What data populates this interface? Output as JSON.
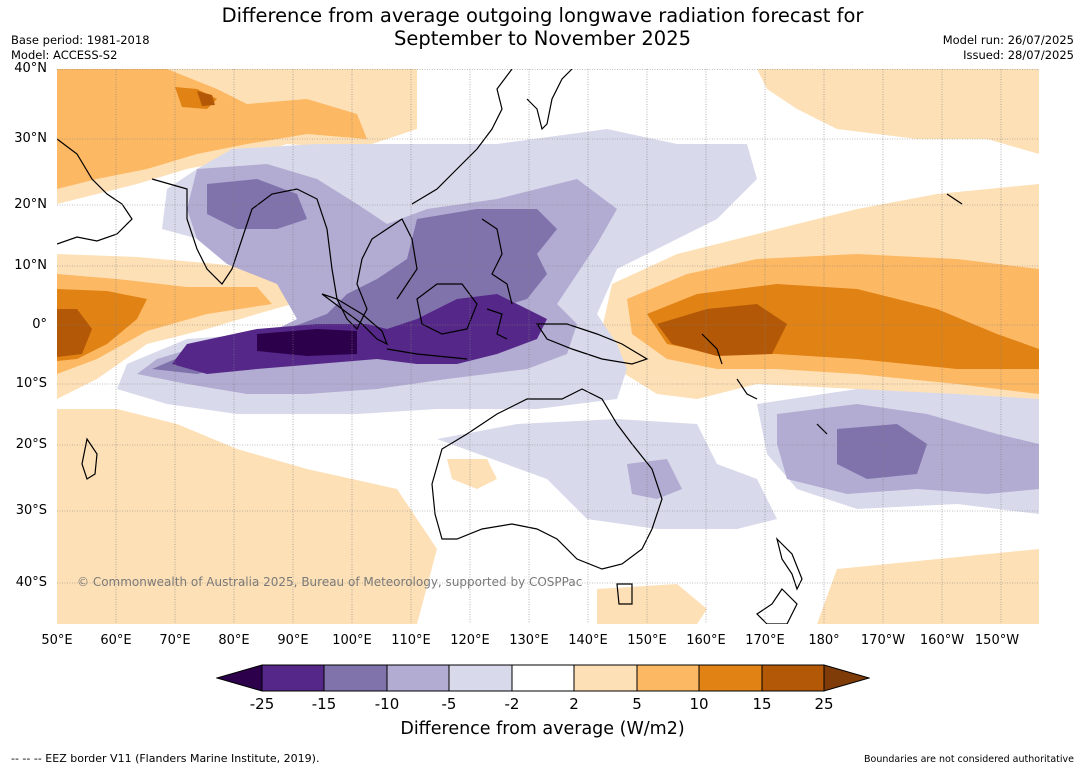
{
  "header": {
    "title_line1": "Difference from average outgoing longwave radiation forecast for",
    "title_line2": "September to November 2025",
    "base_period": "Base period: 1981-2018",
    "model": "Model: ACCESS-S2",
    "model_run": "Model run: 26/07/2025",
    "issued": "Issued: 28/07/2025"
  },
  "map": {
    "lat_labels": [
      "40°N",
      "30°N",
      "20°N",
      "10°N",
      "0°",
      "10°S",
      "20°S",
      "30°S",
      "40°S"
    ],
    "lon_labels": [
      "50°E",
      "60°E",
      "70°E",
      "80°E",
      "90°E",
      "100°E",
      "110°E",
      "120°E",
      "130°E",
      "140°E",
      "150°E",
      "160°E",
      "170°E",
      "180°",
      "170°W",
      "160°W",
      "150°W"
    ],
    "copyright": "© Commonwealth of Australia 2025, Bureau of Meteorology, supported by COSPPac",
    "land_icon": "coastline",
    "colors": {
      "p4": "#2d004b",
      "p3": "#542788",
      "p2": "#8073ac",
      "p1": "#b2abd2",
      "p0": "#d8daeb",
      "neutral": "#ffffff",
      "o0": "#fee0b6",
      "o1": "#fdb863",
      "o2": "#e08214",
      "o3": "#b35806",
      "o4": "#7f3b08"
    }
  },
  "colorbar": {
    "ticks": [
      "-25",
      "-15",
      "-10",
      "-5",
      "-2",
      "2",
      "5",
      "10",
      "15",
      "25"
    ],
    "label": "Difference from average (W/m2)",
    "colors": [
      "#2d004b",
      "#542788",
      "#8073ac",
      "#b2abd2",
      "#d8daeb",
      "#ffffff",
      "#fee0b6",
      "#fdb863",
      "#e08214",
      "#b35806",
      "#7f3b08"
    ]
  },
  "footer": {
    "eez_note": "--  --  -- EEZ border V11 (Flanders Marine Institute, 2019).",
    "disclaimer": "Boundaries are not considered authoritative"
  }
}
